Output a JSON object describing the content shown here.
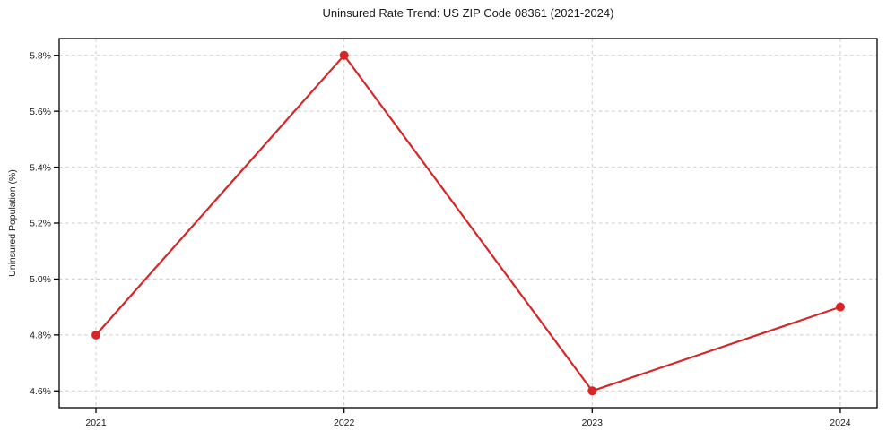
{
  "chart_data": {
    "type": "line",
    "title": "Uninsured Rate Trend: US ZIP Code 08361 (2021-2024)",
    "xlabel": "",
    "ylabel": "Uninsured Population (%)",
    "categories": [
      "2021",
      "2022",
      "2023",
      "2024"
    ],
    "series": [
      {
        "name": "Uninsured rate",
        "values": [
          4.8,
          5.8,
          4.6,
          4.9
        ]
      }
    ],
    "yticks": [
      4.6,
      4.8,
      5.0,
      5.2,
      5.4,
      5.6,
      5.8
    ],
    "ytick_suffix": "%",
    "ylim": [
      4.54,
      5.86
    ],
    "x_margin_frac": 0.045,
    "grid": true,
    "legend_position": "none",
    "line_color": "#d62728",
    "marker_color": "#d62728",
    "marker_shape": "circle",
    "grid_color": "#cccccc",
    "spine_color": "#000000",
    "text_color": "#1a1a1a",
    "background_color": "#ffffff"
  }
}
